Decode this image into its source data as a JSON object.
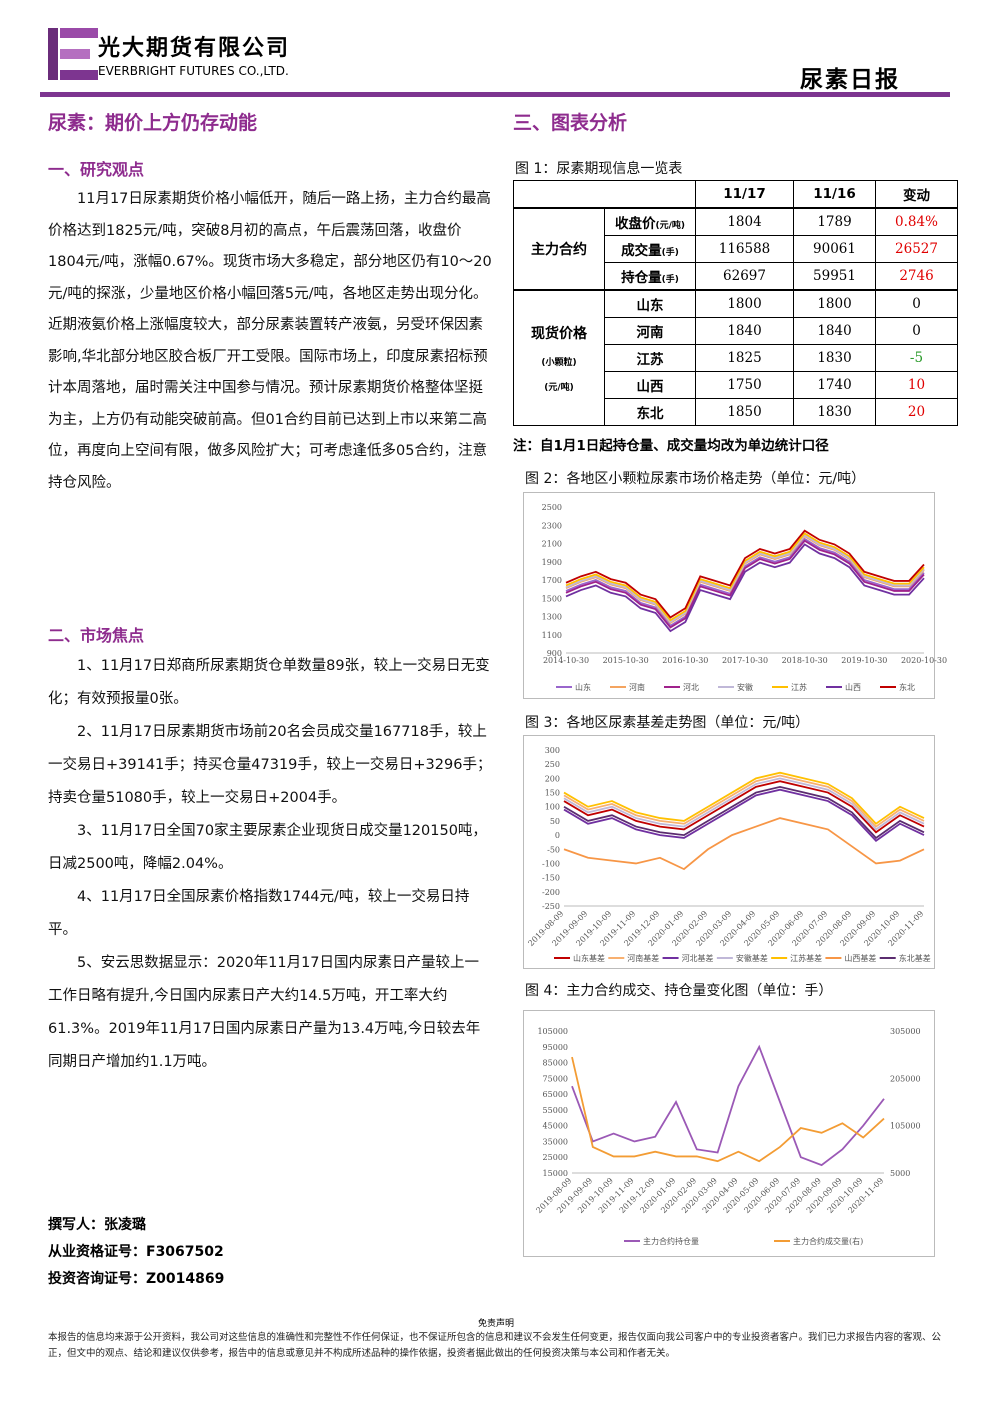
{
  "header": {
    "company_cn": "光大期货有限公司",
    "company_en": "EVERBRIGHT FUTURES CO.,LTD.",
    "report": "尿素日报"
  },
  "headline": "尿素：期价上方仍存动能",
  "sections": [
    {
      "title": "一、研究观点",
      "paragraphs": [
        "11月17日尿素期货价格小幅低开，随后一路上扬，主力合约最高价格达到1825元/吨，突破8月初的高点，午后震荡回落，收盘价1804元/吨，涨幅0.67%。现货市场大多稳定，部分地区仍有10～20元/吨的探涨，少量地区价格小幅回落5元/吨，各地区走势出现分化。近期液氨价格上涨幅度较大，部分尿素装置转产液氨，另受环保因素影响,华北部分地区胶合板厂开工受限。国际市场上，印度尿素招标预计本周落地，届时需关注中国参与情况。预计尿素期货价格整体坚挺为主，上方仍有动能突破前高。但01合约目前已达到上市以来第二高位，再度向上空间有限，做多风险扩大；可考虑逢低多05合约，注意持仓风险。"
      ]
    },
    {
      "title": "二、市场焦点",
      "paragraphs": [
        "1、11月17日郑商所尿素期货仓单数量89张，较上一交易日无变化；有效预报量0张。",
        "2、11月17日尿素期货市场前20名会员成交量167718手，较上一交易日+39141手；持买仓量47319手，较上一交易日+3296手；持卖仓量51080手，较上一交易日+2004手。",
        "3、11月17日全国70家主要尿素企业现货日成交量120150吨，日减2500吨，降幅2.04%。",
        "4、11月17日全国尿素价格指数1744元/吨，较上一交易日持平。",
        "5、安云思数据显示：2020年11月17日国内尿素日产量较上一工作日略有提升,今日国内尿素日产大约14.5万吨，开工率大约61.3%。2019年11月17日国内尿素日产量为13.4万吨,今日较去年同期日产增加约1.1万吨。"
      ]
    }
  ],
  "author": [
    "撰写人：张凌璐",
    "从业资格证号：F3067502",
    "投资咨询证号：Z0014869"
  ],
  "analysis_title": "三、图表分析",
  "table": {
    "caption": "图 1：尿素期现信息一览表",
    "columns": [
      "11/17",
      "11/16",
      "变动"
    ],
    "groups": [
      {
        "label": "主力合约",
        "rows": [
          {
            "label": "收盘价",
            "unit": "(元/吨)",
            "cells": [
              "1804",
              "1789",
              "0.84%"
            ]
          },
          {
            "label": "成交量",
            "unit": "(手)",
            "cells": [
              "116588",
              "90061",
              "26527"
            ]
          },
          {
            "label": "持仓量",
            "unit": "(手)",
            "cells": [
              "62697",
              "59951",
              "2746"
            ]
          }
        ]
      },
      {
        "label": "现货价格",
        "sublabels": [
          "(小颗粒)",
          "(元/吨)"
        ],
        "rows": [
          {
            "label": "山东",
            "cells": [
              "1800",
              "1800",
              "0"
            ]
          },
          {
            "label": "河南",
            "cells": [
              "1840",
              "1840",
              "0"
            ]
          },
          {
            "label": "江苏",
            "cells": [
              "1825",
              "1830",
              "-5"
            ]
          },
          {
            "label": "山西",
            "cells": [
              "1750",
              "1740",
              "10"
            ]
          },
          {
            "label": "东北",
            "cells": [
              "1850",
              "1830",
              "20"
            ]
          }
        ]
      }
    ],
    "note": "注：自1月1日起持仓量、成交量均改为单边统计口径"
  },
  "chart_data": [
    {
      "type": "line",
      "title": "图 2：各地区小颗粒尿素市场价格走势（单位：元/吨）",
      "grid": false,
      "categories": [
        "2014-10-30",
        null,
        null,
        null,
        "2015-10-30",
        null,
        null,
        null,
        "2016-10-30",
        null,
        null,
        null,
        "2017-10-30",
        null,
        null,
        null,
        "2018-10-30",
        null,
        null,
        null,
        "2019-10-30",
        null,
        null,
        null,
        "2020-10-30"
      ],
      "ylim": [
        900,
        2500
      ],
      "yticks": [
        900,
        1100,
        1300,
        1500,
        1700,
        1900,
        2100,
        2300,
        2500
      ],
      "series": [
        {
          "name": "山东",
          "color": "#9966cc",
          "values": [
            1580,
            1650,
            1700,
            1620,
            1580,
            1450,
            1400,
            1200,
            1300,
            1650,
            1600,
            1550,
            1850,
            1950,
            1900,
            1950,
            2150,
            2050,
            2000,
            1900,
            1700,
            1650,
            1600,
            1600,
            1780
          ]
        },
        {
          "name": "河南",
          "color": "#f4a460",
          "values": [
            1610,
            1680,
            1730,
            1650,
            1610,
            1480,
            1430,
            1230,
            1330,
            1680,
            1630,
            1580,
            1880,
            1980,
            1930,
            1980,
            2180,
            2080,
            2030,
            1930,
            1730,
            1680,
            1630,
            1630,
            1810
          ]
        },
        {
          "name": "河北",
          "color": "#a0228c",
          "values": [
            1560,
            1630,
            1680,
            1600,
            1560,
            1430,
            1380,
            1180,
            1280,
            1630,
            1580,
            1530,
            1830,
            1930,
            1880,
            1930,
            2130,
            2030,
            1980,
            1880,
            1680,
            1630,
            1580,
            1580,
            1760
          ]
        },
        {
          "name": "安徽",
          "color": "#c0b8d8",
          "values": [
            1620,
            1690,
            1740,
            1660,
            1620,
            1490,
            1440,
            1240,
            1340,
            1690,
            1640,
            1590,
            1890,
            1990,
            1940,
            1990,
            2190,
            2090,
            2040,
            1940,
            1740,
            1690,
            1640,
            1640,
            1820
          ]
        },
        {
          "name": "江苏",
          "color": "#ffc000",
          "values": [
            1640,
            1710,
            1760,
            1680,
            1640,
            1510,
            1460,
            1260,
            1360,
            1710,
            1660,
            1610,
            1910,
            2010,
            1960,
            2010,
            2210,
            2110,
            2060,
            1960,
            1760,
            1710,
            1660,
            1660,
            1840
          ]
        },
        {
          "name": "山西",
          "color": "#7030a0",
          "values": [
            1520,
            1590,
            1640,
            1560,
            1520,
            1390,
            1340,
            1140,
            1240,
            1590,
            1540,
            1490,
            1790,
            1890,
            1840,
            1890,
            2090,
            1990,
            1940,
            1840,
            1640,
            1590,
            1540,
            1540,
            1720
          ]
        },
        {
          "name": "东北",
          "color": "#c00000",
          "values": [
            1670,
            1740,
            1790,
            1710,
            1670,
            1540,
            1490,
            1290,
            1390,
            1740,
            1690,
            1640,
            1940,
            2040,
            1990,
            2040,
            2240,
            2140,
            2090,
            1990,
            1790,
            1740,
            1690,
            1690,
            1870
          ]
        }
      ]
    },
    {
      "type": "line",
      "title": "图 3：各地区尿素基差走势图（单位：元/吨）",
      "grid": false,
      "categories": [
        "2019-08-09",
        "2019-09-09",
        "2019-10-09",
        "2019-11-09",
        "2019-12-09",
        "2020-01-09",
        "2020-02-09",
        "2020-03-09",
        "2020-04-09",
        "2020-05-09",
        "2020-06-09",
        "2020-07-09",
        "2020-08-09",
        "2020-09-09",
        "2020-10-09",
        "2020-11-09"
      ],
      "ylim": [
        -250,
        300
      ],
      "yticks": [
        -250,
        -200,
        -150,
        -100,
        -50,
        0,
        50,
        100,
        150,
        200,
        250,
        300
      ],
      "series": [
        {
          "name": "山东基差",
          "color": "#c00000",
          "values": [
            120,
            70,
            90,
            50,
            30,
            20,
            70,
            120,
            170,
            190,
            170,
            150,
            100,
            10,
            70,
            30
          ]
        },
        {
          "name": "河南基差",
          "color": "#f8b070",
          "values": [
            140,
            90,
            110,
            70,
            50,
            40,
            90,
            140,
            190,
            210,
            190,
            170,
            120,
            30,
            90,
            50
          ]
        },
        {
          "name": "河北基差",
          "color": "#7030a0",
          "values": [
            90,
            40,
            60,
            20,
            0,
            -10,
            40,
            90,
            140,
            160,
            140,
            120,
            70,
            -20,
            40,
            0
          ]
        },
        {
          "name": "安徽基差",
          "color": "#c0b8d8",
          "values": [
            130,
            80,
            100,
            60,
            40,
            30,
            80,
            130,
            180,
            200,
            180,
            160,
            110,
            20,
            80,
            40
          ]
        },
        {
          "name": "江苏基差",
          "color": "#ffc000",
          "values": [
            150,
            100,
            120,
            80,
            60,
            50,
            100,
            150,
            200,
            220,
            200,
            180,
            130,
            40,
            100,
            60
          ]
        },
        {
          "name": "山西基差",
          "color": "#f79646",
          "values": [
            -50,
            -80,
            -90,
            -100,
            -80,
            -120,
            -50,
            0,
            30,
            60,
            40,
            20,
            -40,
            -100,
            -90,
            -50
          ]
        },
        {
          "name": "东北基差",
          "color": "#5b2c6f",
          "values": [
            100,
            50,
            70,
            30,
            10,
            0,
            50,
            100,
            150,
            170,
            150,
            130,
            80,
            -10,
            50,
            10
          ]
        }
      ]
    },
    {
      "type": "line",
      "title": "图 4：主力合约成交、持仓量变化图（单位：手）",
      "grid": false,
      "categories": [
        "2019-08-09",
        "2019-09-09",
        "2019-10-09",
        "2019-11-09",
        "2019-12-09",
        "2020-01-09",
        "2020-02-09",
        "2020-03-09",
        "2020-04-09",
        "2020-05-09",
        "2020-06-09",
        "2020-07-09",
        "2020-08-09",
        "2020-09-09",
        "2020-10-09",
        "2020-11-09"
      ],
      "ylim": [
        15000,
        105000
      ],
      "yticks": [
        15000,
        25000,
        35000,
        45000,
        55000,
        65000,
        75000,
        85000,
        95000,
        105000
      ],
      "y2lim": [
        5000,
        305000
      ],
      "y2ticks": [
        5000,
        105000,
        205000,
        305000
      ],
      "series": [
        {
          "name": "主力合约持仓量",
          "color": "#9b59b6",
          "values": [
            70000,
            35000,
            40000,
            35000,
            38000,
            60000,
            30000,
            28000,
            70000,
            95000,
            60000,
            25000,
            20000,
            30000,
            45000,
            62000
          ]
        },
        {
          "name": "主力合约成交量(右)",
          "color": "#f39c34",
          "axis": "y2",
          "values": [
            250000,
            60000,
            40000,
            40000,
            50000,
            40000,
            40000,
            30000,
            50000,
            30000,
            60000,
            100000,
            90000,
            110000,
            80000,
            120000
          ]
        }
      ]
    }
  ],
  "disclaimer": {
    "title": "免责声明",
    "text": "本报告的信息均来源于公开资料，我公司对这些信息的准确性和完整性不作任何保证，也不保证所包含的信息和建议不会发生任何变更，报告仅面向我公司客户中的专业投资者客户。我们已力求报告内容的客观、公正，但文中的观点、结论和建议仅供参考，报告中的信息或意见并不构成所述品种的操作依据，投资者据此做出的任何投资决策与本公司和作者无关。"
  }
}
